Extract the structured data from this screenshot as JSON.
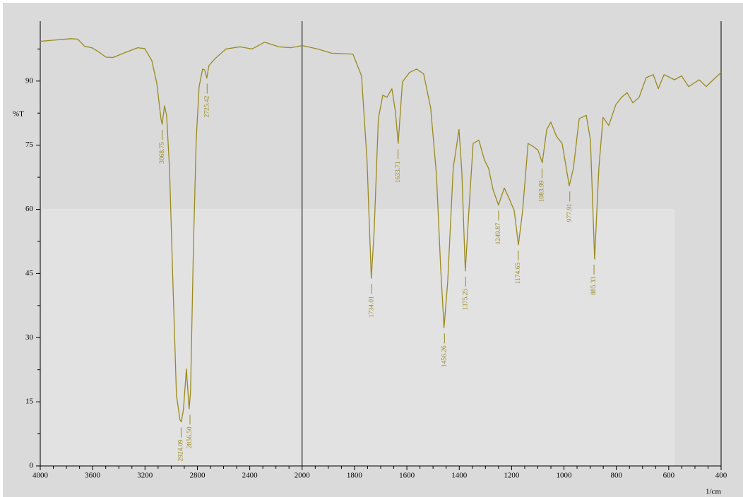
{
  "chart_data": {
    "type": "line",
    "ylabel": "%T",
    "xlabel": "1/cm",
    "xlim": [
      4000,
      400
    ],
    "x_scale_break": {
      "at": 2000,
      "factor": 2
    },
    "xticks": [
      4000,
      3600,
      3200,
      2800,
      2400,
      2000,
      1800,
      1600,
      1400,
      1200,
      1000,
      800,
      600,
      400
    ],
    "xticks_minor": [
      3900,
      3800,
      3700,
      3500,
      3400,
      3300,
      3100,
      3000,
      2900,
      2700,
      2600,
      2500,
      2300,
      2200,
      2100,
      1950,
      1900,
      1850,
      1750,
      1700,
      1650,
      1550,
      1500,
      1450,
      1350,
      1300,
      1250,
      1150,
      1100,
      1050,
      950,
      900,
      850,
      750,
      700,
      650,
      550,
      500,
      450
    ],
    "ylim": [
      0,
      104
    ],
    "yticks": [
      0,
      15,
      30,
      45,
      60,
      75,
      90
    ],
    "yticks_minor": [
      7.5,
      22.5,
      37.5,
      52.5,
      67.5,
      82.5,
      97.5
    ],
    "x": [
      4000,
      3768,
      3714,
      3660,
      3606,
      3553,
      3499,
      3445,
      3364,
      3256,
      3202,
      3148,
      3110,
      3078,
      3069,
      3051,
      3035,
      3013,
      2987,
      2960,
      2933,
      2922,
      2906,
      2884,
      2863,
      2852,
      2830,
      2809,
      2787,
      2760,
      2744,
      2728,
      2712,
      2663,
      2582,
      2474,
      2383,
      2286,
      2178,
      2086,
      2000,
      1941,
      1887,
      1806,
      1773,
      1752,
      1736,
      1725,
      1709,
      1692,
      1676,
      1657,
      1644,
      1633,
      1617,
      1590,
      1563,
      1536,
      1509,
      1487,
      1471,
      1458,
      1444,
      1423,
      1401,
      1390,
      1377,
      1363,
      1347,
      1325,
      1304,
      1288,
      1271,
      1250,
      1228,
      1207,
      1190,
      1174,
      1158,
      1137,
      1115,
      1099,
      1083,
      1066,
      1050,
      1029,
      1007,
      980,
      964,
      942,
      915,
      899,
      883,
      867,
      851,
      829,
      802,
      780,
      759,
      737,
      713,
      686,
      659,
      640,
      618,
      578,
      551,
      524,
      484,
      457,
      430,
      400
    ],
    "series": [
      {
        "color": "#9a8a1e",
        "values": [
          99.3,
          99.9,
          99.8,
          98.1,
          97.8,
          96.8,
          95.6,
          95.5,
          96.5,
          97.8,
          97.6,
          94.8,
          89.5,
          81.2,
          79.9,
          84.2,
          82.0,
          69.6,
          43.1,
          16.6,
          10.8,
          10.3,
          13.3,
          22.7,
          13.3,
          17.4,
          51.4,
          76.2,
          88.7,
          92.8,
          92.6,
          90.7,
          93.6,
          95.3,
          97.5,
          98.0,
          97.5,
          99.1,
          98.0,
          97.8,
          98.3,
          97.5,
          96.5,
          96.3,
          91.2,
          71.3,
          43.9,
          54.7,
          81.2,
          86.7,
          86.2,
          88.2,
          82.9,
          75.4,
          89.8,
          92.0,
          92.8,
          91.7,
          83.7,
          68.0,
          46.4,
          32.3,
          43.1,
          69.6,
          78.7,
          68.8,
          45.6,
          59.7,
          75.4,
          76.2,
          71.6,
          69.6,
          64.6,
          61.0,
          65.0,
          62.2,
          59.7,
          51.7,
          59.7,
          75.4,
          74.6,
          73.8,
          70.9,
          78.7,
          80.4,
          77.1,
          75.4,
          65.5,
          69.6,
          81.2,
          82.0,
          76.2,
          48.4,
          69.6,
          81.5,
          79.6,
          84.5,
          86.2,
          87.3,
          84.9,
          86.2,
          90.8,
          91.5,
          88.2,
          91.5,
          90.3,
          91.2,
          88.7,
          90.3,
          88.7,
          90.3,
          92.0
        ]
      }
    ],
    "peaks": [
      {
        "x": 3068.75,
        "y": 79.9,
        "label": "3068.75"
      },
      {
        "x": 2924.09,
        "y": 10.3,
        "label": "2924.09"
      },
      {
        "x": 2856.5,
        "y": 13.3,
        "label": "2856.50"
      },
      {
        "x": 2725.42,
        "y": 90.7,
        "label": "2725.42"
      },
      {
        "x": 1734.01,
        "y": 43.9,
        "label": "1734.01"
      },
      {
        "x": 1633.71,
        "y": 75.4,
        "label": "1633.71"
      },
      {
        "x": 1456.26,
        "y": 32.3,
        "label": "1456.26"
      },
      {
        "x": 1375.25,
        "y": 45.6,
        "label": "1375.25"
      },
      {
        "x": 1249.87,
        "y": 61.0,
        "label": "1249.87"
      },
      {
        "x": 1174.65,
        "y": 51.7,
        "label": "1174.65"
      },
      {
        "x": 1083.99,
        "y": 70.9,
        "label": "1083.99"
      },
      {
        "x": 977.91,
        "y": 65.5,
        "label": "977.91"
      },
      {
        "x": 885.33,
        "y": 48.4,
        "label": "885.33"
      }
    ]
  }
}
